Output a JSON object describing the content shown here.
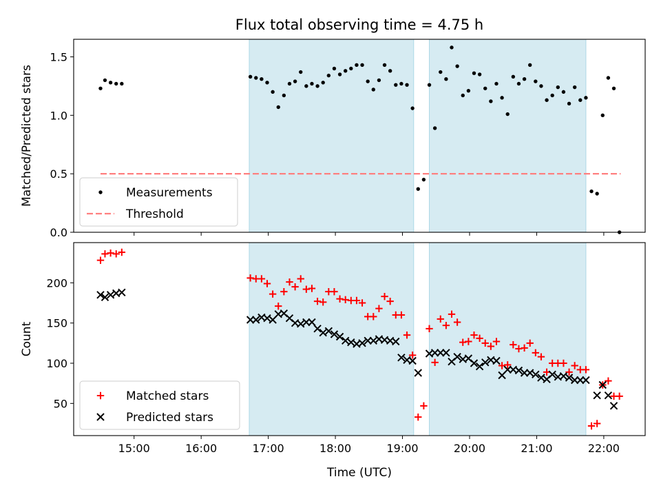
{
  "figure": {
    "title": "Flux total observing time = 4.75 h",
    "xlabel": "Time (UTC)"
  },
  "colors": {
    "span": "#add8e6",
    "measurement": "#000000",
    "threshold": "#ff7f7f",
    "matched": "#ff0000",
    "predicted": "#000000"
  },
  "chart_data": [
    {
      "type": "scatter",
      "panel": "top",
      "ylabel": "Matched/Predicted stars",
      "xlim": [
        "14:06",
        "22:37"
      ],
      "ylim": [
        0,
        1.65
      ],
      "xticks": [
        "15:00",
        "16:00",
        "17:00",
        "18:00",
        "19:00",
        "20:00",
        "21:00",
        "22:00"
      ],
      "yticks": [
        "0.0",
        "0.5",
        "1.0",
        "1.5"
      ],
      "shaded_intervals": [
        [
          "16:43",
          "19:10"
        ],
        [
          "19:24",
          "21:44"
        ]
      ],
      "legend": {
        "location": "lower left",
        "entries": [
          "Measurements",
          "Threshold"
        ]
      },
      "threshold": {
        "name": "Threshold",
        "value": 0.5,
        "x_range": [
          "14:30",
          "22:15"
        ]
      },
      "series": [
        {
          "name": "Measurements",
          "marker": "dot",
          "x": [
            "14:30",
            "14:34",
            "14:39",
            "14:44",
            "14:49",
            "16:44",
            "16:49",
            "16:54",
            "16:59",
            "17:04",
            "17:09",
            "17:14",
            "17:19",
            "17:24",
            "17:29",
            "17:34",
            "17:39",
            "17:44",
            "17:49",
            "17:54",
            "17:59",
            "18:04",
            "18:09",
            "18:14",
            "18:19",
            "18:24",
            "18:29",
            "18:34",
            "18:39",
            "18:44",
            "18:49",
            "18:54",
            "18:59",
            "19:04",
            "19:09",
            "19:14",
            "19:19",
            "19:24",
            "19:29",
            "19:34",
            "19:39",
            "19:44",
            "19:49",
            "19:54",
            "19:59",
            "20:04",
            "20:09",
            "20:14",
            "20:19",
            "20:24",
            "20:29",
            "20:34",
            "20:39",
            "20:44",
            "20:49",
            "20:54",
            "20:59",
            "21:04",
            "21:09",
            "21:14",
            "21:19",
            "21:24",
            "21:29",
            "21:34",
            "21:39",
            "21:44",
            "21:49",
            "21:54",
            "21:59",
            "22:04",
            "22:09",
            "22:14"
          ],
          "y": [
            1.23,
            1.3,
            1.28,
            1.27,
            1.27,
            1.33,
            1.32,
            1.31,
            1.28,
            1.2,
            1.07,
            1.17,
            1.27,
            1.29,
            1.37,
            1.25,
            1.27,
            1.25,
            1.28,
            1.34,
            1.4,
            1.35,
            1.38,
            1.4,
            1.43,
            1.43,
            1.29,
            1.22,
            1.3,
            1.43,
            1.38,
            1.26,
            1.27,
            1.26,
            1.06,
            0.37,
            0.45,
            1.26,
            0.89,
            1.37,
            1.31,
            1.58,
            1.42,
            1.17,
            1.21,
            1.36,
            1.35,
            1.23,
            1.12,
            1.27,
            1.15,
            1.01,
            1.33,
            1.27,
            1.31,
            1.43,
            1.29,
            1.25,
            1.13,
            1.17,
            1.24,
            1.2,
            1.1,
            1.24,
            1.13,
            1.15,
            0.35,
            0.33,
            1.0,
            1.32,
            1.23,
            0.0
          ]
        }
      ]
    },
    {
      "type": "scatter",
      "panel": "bottom",
      "ylabel": "Count",
      "xlim": [
        "14:06",
        "22:37"
      ],
      "ylim": [
        10,
        250
      ],
      "xticks": [
        "15:00",
        "16:00",
        "17:00",
        "18:00",
        "19:00",
        "20:00",
        "21:00",
        "22:00"
      ],
      "yticks": [
        "50",
        "100",
        "150",
        "200"
      ],
      "shaded_intervals": [
        [
          "16:43",
          "19:10"
        ],
        [
          "19:24",
          "21:44"
        ]
      ],
      "legend": {
        "location": "lower left",
        "entries": [
          "Matched stars",
          "Predicted stars"
        ]
      },
      "series": [
        {
          "name": "Matched stars",
          "marker": "plus",
          "x": [
            "14:30",
            "14:34",
            "14:39",
            "14:44",
            "14:49",
            "16:44",
            "16:49",
            "16:54",
            "16:59",
            "17:04",
            "17:09",
            "17:14",
            "17:19",
            "17:24",
            "17:29",
            "17:34",
            "17:39",
            "17:44",
            "17:49",
            "17:54",
            "17:59",
            "18:04",
            "18:09",
            "18:14",
            "18:19",
            "18:24",
            "18:29",
            "18:34",
            "18:39",
            "18:44",
            "18:49",
            "18:54",
            "18:59",
            "19:04",
            "19:09",
            "19:14",
            "19:19",
            "19:24",
            "19:29",
            "19:34",
            "19:39",
            "19:44",
            "19:49",
            "19:54",
            "19:59",
            "20:04",
            "20:09",
            "20:14",
            "20:19",
            "20:24",
            "20:29",
            "20:34",
            "20:39",
            "20:44",
            "20:49",
            "20:54",
            "20:59",
            "21:04",
            "21:09",
            "21:14",
            "21:19",
            "21:24",
            "21:29",
            "21:34",
            "21:39",
            "21:44",
            "21:49",
            "21:54",
            "21:59",
            "22:04",
            "22:09",
            "22:14"
          ],
          "y": [
            228,
            236,
            237,
            236,
            238,
            206,
            205,
            205,
            199,
            186,
            171,
            189,
            201,
            195,
            205,
            192,
            193,
            177,
            176,
            189,
            189,
            180,
            179,
            178,
            178,
            175,
            158,
            158,
            168,
            183,
            177,
            160,
            160,
            135,
            110,
            33,
            47,
            143,
            101,
            155,
            147,
            161,
            151,
            126,
            127,
            135,
            131,
            125,
            121,
            127,
            97,
            98,
            123,
            118,
            119,
            125,
            113,
            108,
            89,
            100,
            100,
            100,
            89,
            97,
            92,
            92,
            22,
            25,
            73,
            78,
            59,
            59
          ]
        },
        {
          "name": "Predicted stars",
          "marker": "x",
          "x": [
            "14:30",
            "14:34",
            "14:39",
            "14:44",
            "14:49",
            "16:44",
            "16:49",
            "16:54",
            "16:59",
            "17:04",
            "17:09",
            "17:14",
            "17:19",
            "17:24",
            "17:29",
            "17:34",
            "17:39",
            "17:44",
            "17:49",
            "17:54",
            "17:59",
            "18:04",
            "18:09",
            "18:14",
            "18:19",
            "18:24",
            "18:29",
            "18:34",
            "18:39",
            "18:44",
            "18:49",
            "18:54",
            "18:59",
            "19:04",
            "19:09",
            "19:14",
            "19:24",
            "19:29",
            "19:34",
            "19:39",
            "19:44",
            "19:49",
            "19:54",
            "19:59",
            "20:04",
            "20:09",
            "20:14",
            "20:19",
            "20:24",
            "20:29",
            "20:34",
            "20:39",
            "20:44",
            "20:49",
            "20:54",
            "20:59",
            "21:04",
            "21:09",
            "21:14",
            "21:19",
            "21:24",
            "21:29",
            "21:34",
            "21:39",
            "21:44",
            "21:54",
            "21:59",
            "22:04",
            "22:09"
          ],
          "y": [
            185,
            182,
            185,
            187,
            188,
            154,
            154,
            157,
            156,
            154,
            161,
            162,
            156,
            150,
            149,
            151,
            151,
            143,
            138,
            140,
            136,
            133,
            128,
            126,
            124,
            125,
            128,
            128,
            130,
            129,
            128,
            127,
            107,
            104,
            103,
            88,
            112,
            113,
            113,
            113,
            102,
            108,
            105,
            106,
            100,
            96,
            101,
            104,
            103,
            85,
            92,
            92,
            91,
            88,
            88,
            86,
            82,
            80,
            86,
            83,
            84,
            82,
            79,
            79,
            79,
            60,
            73,
            60,
            47
          ]
        }
      ]
    }
  ]
}
